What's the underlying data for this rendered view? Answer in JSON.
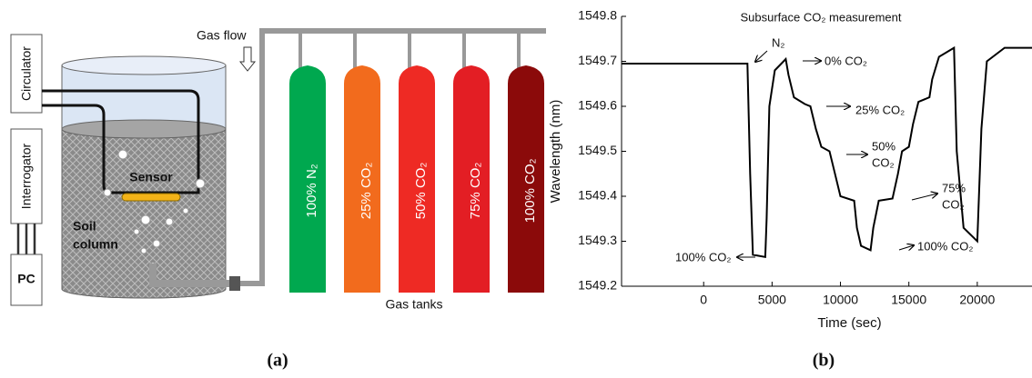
{
  "diagram": {
    "circulator": "Circulator",
    "interrogator": "Interrogator",
    "pc": "PC",
    "sensor": "Sensor",
    "soil_column": [
      "Soil",
      "column"
    ],
    "gas_flow": "Gas flow",
    "tanks": [
      "100% N₂",
      "25% CO₂",
      "50% CO₂",
      "75% CO₂",
      "100% CO₂"
    ],
    "gas_tanks": "Gas tanks"
  },
  "captions": [
    "(a)",
    "(b)"
  ],
  "chart_data": {
    "type": "line",
    "title": "Subsurface CO₂ measurement",
    "x_label": "Time (sec)",
    "y_label": "Wavelength (nm)",
    "xlim": [
      -6000,
      24000
    ],
    "ylim": [
      1549.2,
      1549.8
    ],
    "xticks": [
      0,
      5000,
      10000,
      15000,
      20000
    ],
    "yticks": [
      1549.2,
      1549.3,
      1549.4,
      1549.5,
      1549.6,
      1549.7,
      1549.8
    ],
    "grid": false,
    "series": [
      {
        "color": "#000000",
        "x": [
          -6000,
          0,
          3200,
          3400,
          3600,
          4500,
          4600,
          4800,
          5200,
          6000,
          6200,
          6600,
          7400,
          7800,
          8200,
          8600,
          9200,
          9600,
          10000,
          11000,
          11200,
          11500,
          12200,
          12400,
          12800,
          13800,
          14200,
          14500,
          15000,
          15300,
          15700,
          16500,
          16700,
          17200,
          18300,
          18500,
          19000,
          20000,
          20300,
          20700,
          22000,
          24000
        ],
        "values": [
          1549.695,
          1549.695,
          1549.695,
          1549.45,
          1549.27,
          1549.265,
          1549.35,
          1549.6,
          1549.68,
          1549.705,
          1549.67,
          1549.62,
          1549.605,
          1549.6,
          1549.55,
          1549.51,
          1549.5,
          1549.45,
          1549.4,
          1549.39,
          1549.33,
          1549.29,
          1549.28,
          1549.33,
          1549.39,
          1549.395,
          1549.45,
          1549.5,
          1549.51,
          1549.56,
          1549.61,
          1549.62,
          1549.66,
          1549.71,
          1549.73,
          1549.5,
          1549.33,
          1549.3,
          1549.55,
          1549.7,
          1549.73,
          1549.73
        ]
      }
    ],
    "annotations": [
      [
        "N₂"
      ],
      [
        "0% CO₂"
      ],
      [
        "25% CO₂"
      ],
      [
        "50%",
        "CO₂"
      ],
      [
        "75%",
        "CO₂"
      ],
      [
        "100% CO₂"
      ],
      [
        "100% CO₂"
      ]
    ]
  }
}
